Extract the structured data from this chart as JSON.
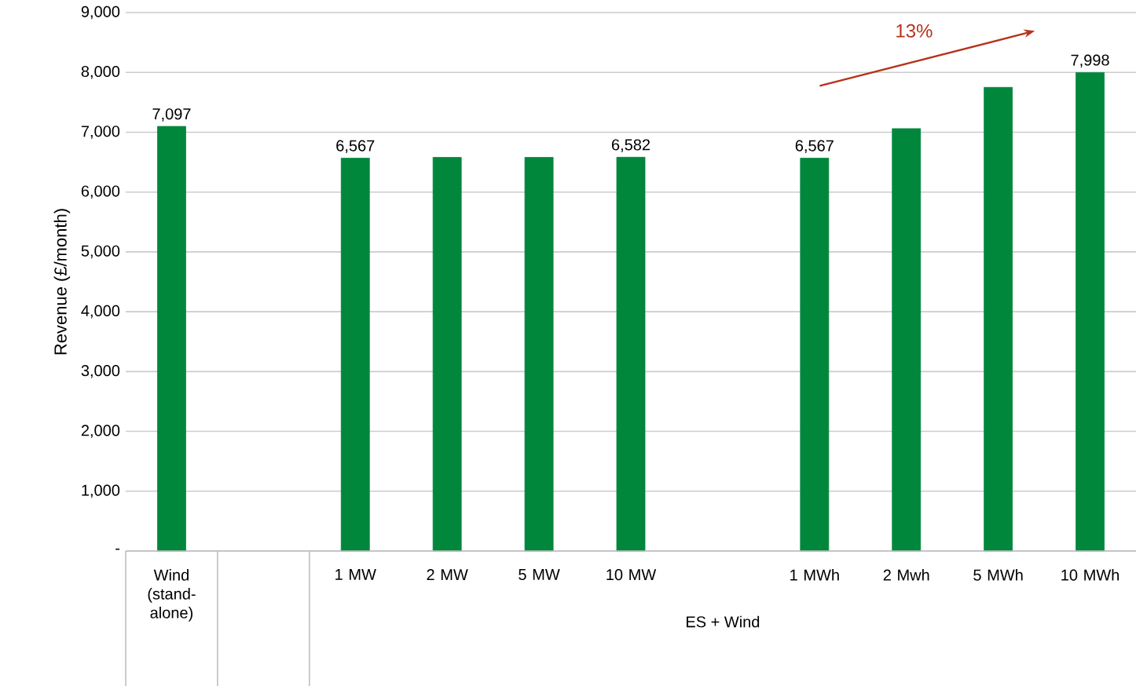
{
  "chart_data": {
    "type": "bar",
    "ylabel": "Revenue (£/month)",
    "categories": [
      "Wind (stand-alone)",
      null,
      "1 MW",
      "2 MW",
      "5 MW",
      "10 MW",
      null,
      "1 MWh",
      "2 Mwh",
      "5 MWh",
      "10 MWh"
    ],
    "values": [
      7097,
      null,
      6567,
      6580,
      6580,
      6582,
      null,
      6567,
      7060,
      7750,
      7998
    ],
    "value_labels": [
      "7,097",
      null,
      "6,567",
      null,
      null,
      "6,582",
      null,
      "6,567",
      null,
      null,
      "7,998"
    ],
    "color": "#00873c",
    "ylim": [
      0,
      9000
    ],
    "yticks": [
      {
        "value": 0,
        "label": "-"
      },
      {
        "value": 1000,
        "label": "1,000"
      },
      {
        "value": 2000,
        "label": "2,000"
      },
      {
        "value": 3000,
        "label": "3,000"
      },
      {
        "value": 4000,
        "label": "4,000"
      },
      {
        "value": 5000,
        "label": "5,000"
      },
      {
        "value": 6000,
        "label": "6,000"
      },
      {
        "value": 7000,
        "label": "7,000"
      },
      {
        "value": 8000,
        "label": "8,000"
      },
      {
        "value": 9000,
        "label": "9,000"
      }
    ],
    "grid": "y",
    "annotations": [
      "ES + Wind",
      "13%"
    ]
  }
}
